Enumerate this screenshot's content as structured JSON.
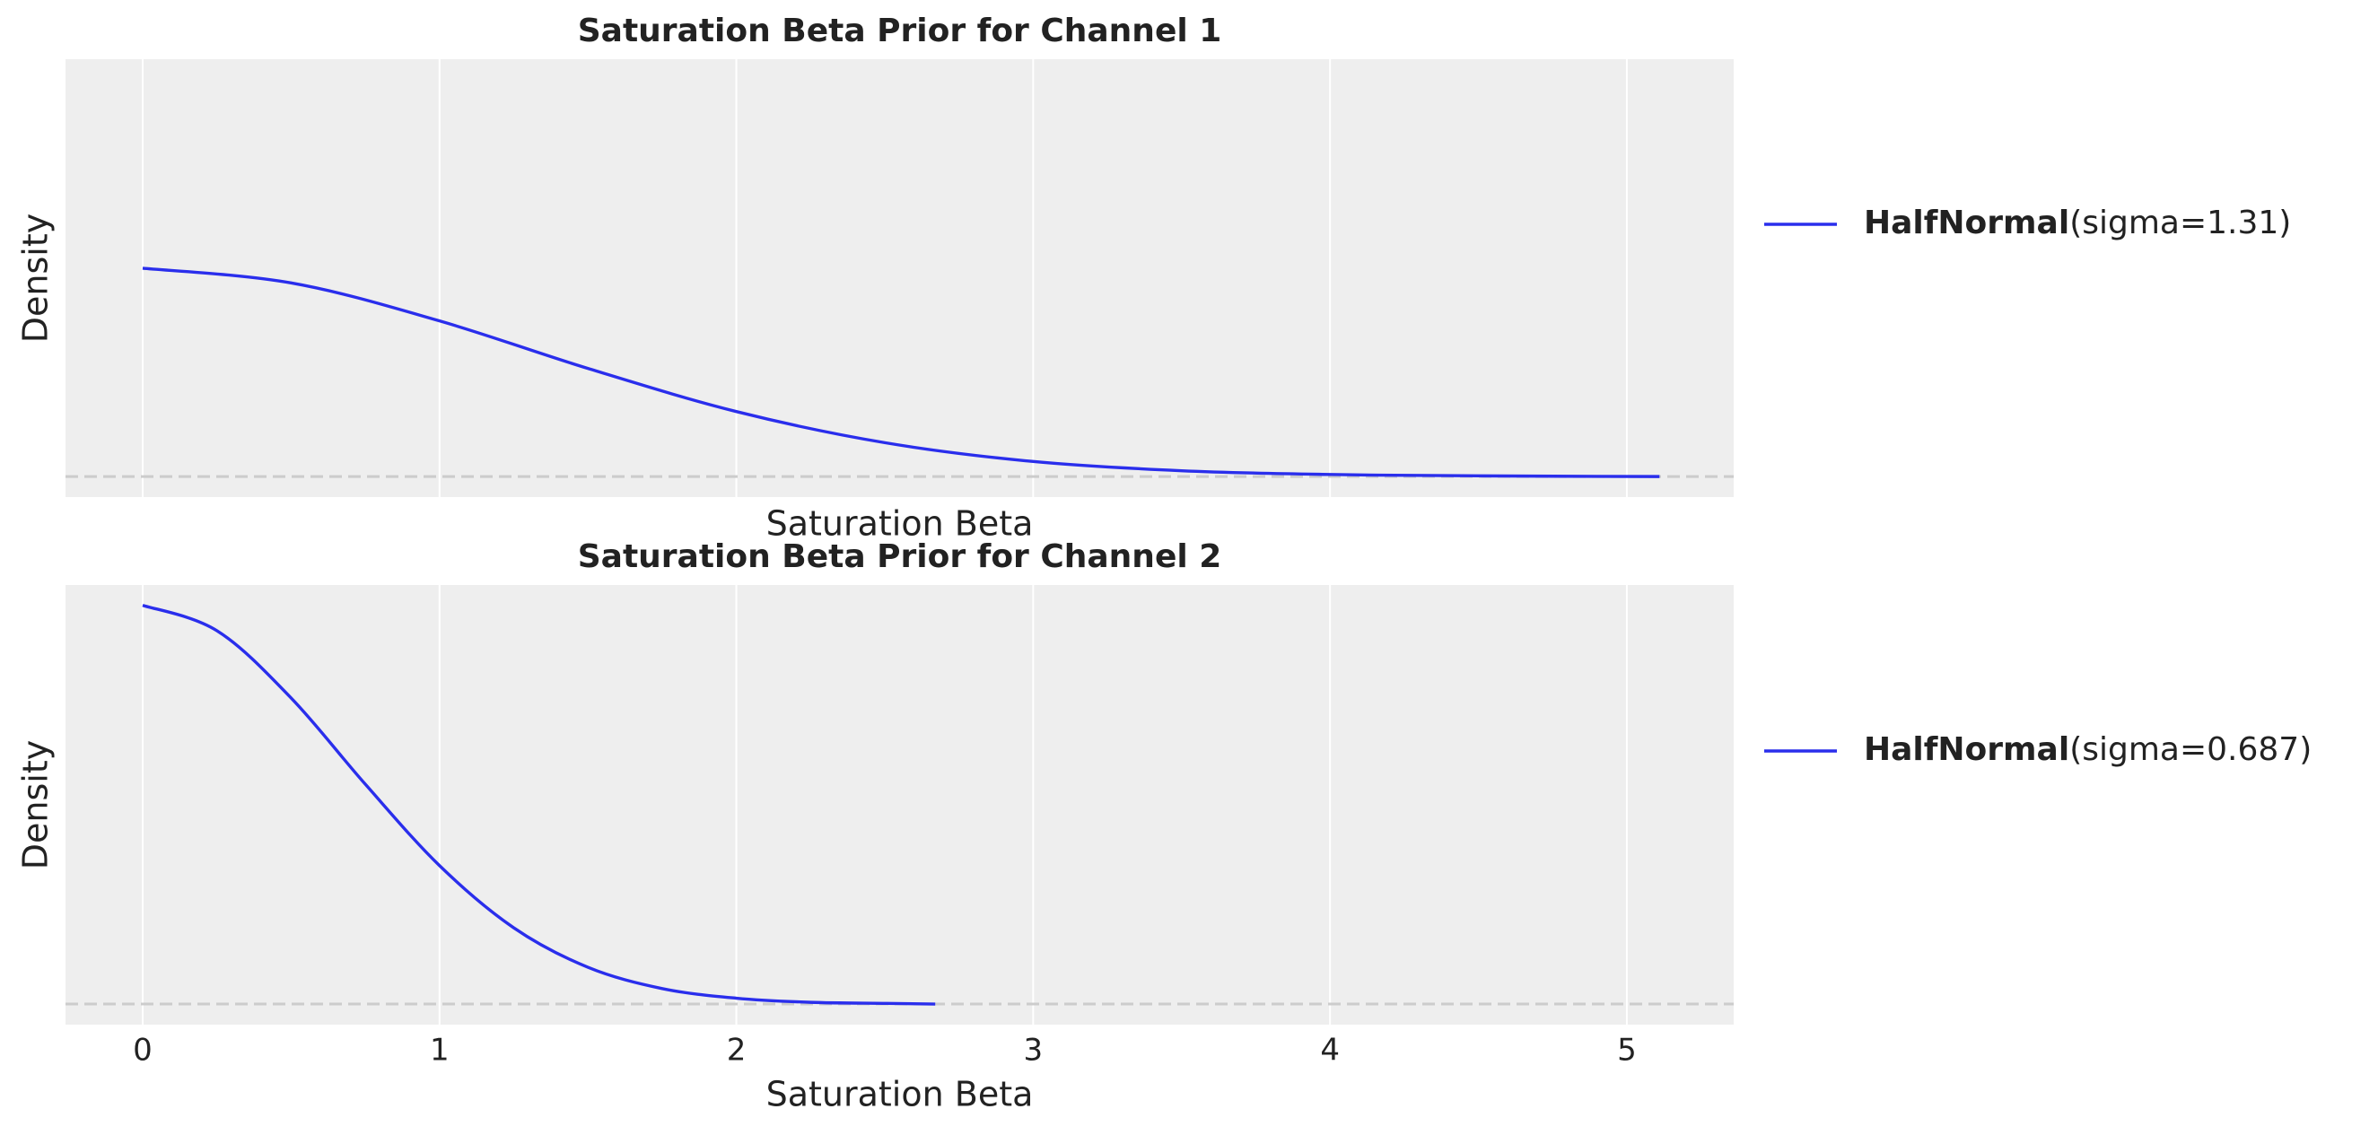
{
  "chart_data": [
    {
      "type": "line",
      "title": "Saturation Beta Prior for Channel 1",
      "xlabel": "Saturation Beta",
      "ylabel": "Density",
      "x": [
        0,
        0.5,
        1,
        1.5,
        2,
        2.5,
        3,
        3.5,
        4,
        4.5,
        5.11
      ],
      "series": [
        {
          "name": "HalfNormal(sigma=1.31)",
          "color": "#2a2eec",
          "values": [
            0.609,
            0.566,
            0.455,
            0.316,
            0.19,
            0.099,
            0.044,
            0.017,
            0.006,
            0.002,
            0.0
          ]
        }
      ],
      "xlim": [
        -0.26,
        5.36
      ],
      "ylim": [
        -0.06,
        1.22
      ],
      "xticks": [
        0,
        1,
        2,
        3,
        4,
        5
      ],
      "grid": true
    },
    {
      "type": "line",
      "title": "Saturation Beta Prior for Channel 2",
      "xlabel": "Saturation Beta",
      "ylabel": "Density",
      "x": [
        0,
        0.25,
        0.5,
        0.75,
        1,
        1.25,
        1.5,
        1.75,
        2,
        2.25,
        2.5,
        2.67
      ],
      "series": [
        {
          "name": "HalfNormal(sigma=0.687)",
          "color": "#2a2eec",
          "values": [
            1.161,
            1.087,
            0.891,
            0.64,
            0.403,
            0.222,
            0.107,
            0.045,
            0.017,
            0.005,
            0.002,
            0.0
          ]
        }
      ],
      "xlim": [
        -0.26,
        5.36
      ],
      "ylim": [
        -0.06,
        1.22
      ],
      "xticks": [
        0,
        1,
        2,
        3,
        4,
        5
      ],
      "grid": true
    }
  ]
}
